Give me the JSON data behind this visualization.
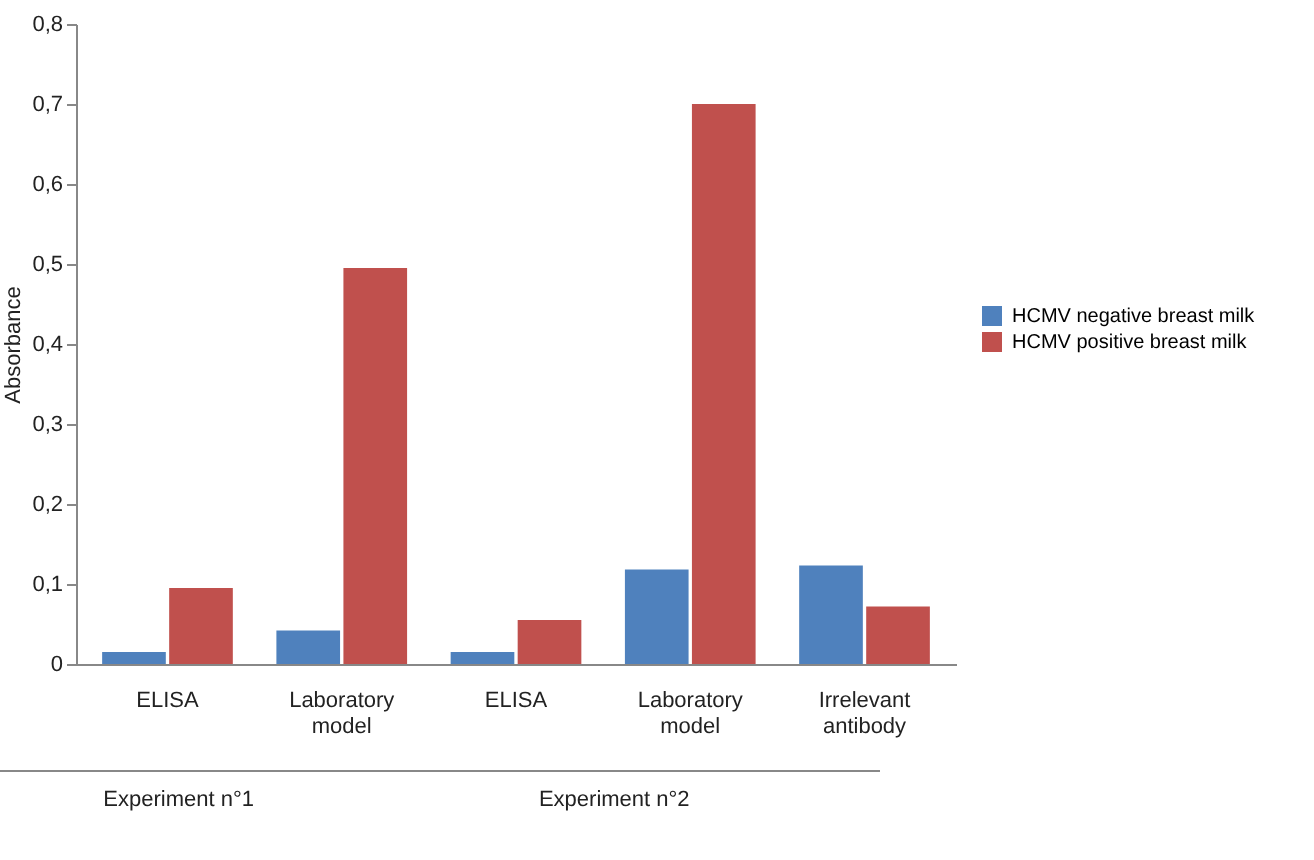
{
  "chart_data": {
    "type": "bar",
    "ylabel": "Absorbance",
    "categories": [
      "ELISA",
      "Laboratory model",
      "ELISA",
      "Laboratory model",
      "Irrelevant antibody"
    ],
    "series": [
      {
        "name": "HCMV negative breast milk",
        "color": "#4f81bd",
        "values": [
          0.015,
          0.042,
          0.015,
          0.118,
          0.123
        ]
      },
      {
        "name": "HCMV positive breast milk",
        "color": "#c0504d",
        "values": [
          0.095,
          0.495,
          0.055,
          0.7,
          0.072
        ]
      }
    ],
    "ylim": [
      0,
      0.8
    ],
    "yticks": [
      0,
      {
        "value": 0.1,
        "label": "0,1"
      },
      {
        "value": 0.2,
        "label": "0,2"
      },
      {
        "value": 0.3,
        "label": "0,3"
      },
      {
        "value": 0.4,
        "label": "0,4"
      },
      {
        "value": 0.5,
        "label": "0,5"
      },
      {
        "value": 0.6,
        "label": "0,6"
      },
      {
        "value": 0.7,
        "label": "0,7"
      },
      {
        "value": 0.8,
        "label": "0,8"
      }
    ],
    "grid": false,
    "legend": "right",
    "annotations": [
      "Experiment n°1",
      "Experiment n°2"
    ]
  }
}
